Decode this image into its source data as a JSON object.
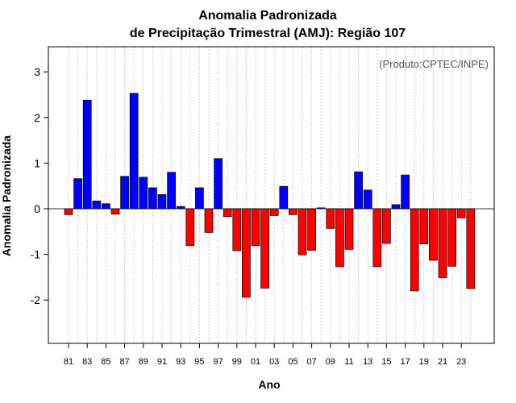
{
  "chart_data": {
    "type": "bar",
    "title": "Anomalia Padronizada",
    "subtitle": "de Precipitação Trimestral (AMJ): Região 107",
    "xlabel": "Ano",
    "ylabel": "Anomalia Padronizada",
    "annotation": "(Produto:CPTEC/INPE)",
    "ylim": [
      -2.95,
      3.55
    ],
    "yticks": [
      -2,
      -1,
      0,
      1,
      2,
      3
    ],
    "grid": "vertical dotted",
    "categories": [
      "81",
      "82",
      "83",
      "84",
      "85",
      "86",
      "87",
      "88",
      "89",
      "90",
      "91",
      "92",
      "93",
      "94",
      "95",
      "96",
      "97",
      "98",
      "99",
      "00",
      "01",
      "02",
      "03",
      "04",
      "05",
      "06",
      "07",
      "08",
      "09",
      "10",
      "11",
      "12",
      "13",
      "14",
      "15",
      "16",
      "17",
      "18",
      "19",
      "20",
      "21",
      "22",
      "23",
      "24"
    ],
    "tick_labels": [
      "81",
      "83",
      "85",
      "87",
      "89",
      "91",
      "93",
      "95",
      "97",
      "99",
      "01",
      "03",
      "05",
      "07",
      "09",
      "11",
      "13",
      "15",
      "17",
      "19",
      "21",
      "23"
    ],
    "values": [
      -0.13,
      0.66,
      2.38,
      0.17,
      0.11,
      -0.12,
      0.71,
      2.53,
      0.69,
      0.46,
      0.31,
      0.8,
      0.05,
      -0.81,
      0.46,
      -0.52,
      1.1,
      -0.17,
      -0.92,
      -1.94,
      -0.81,
      -1.74,
      -0.15,
      0.49,
      -0.13,
      -1.01,
      -0.91,
      0.02,
      -0.43,
      -1.27,
      -0.89,
      0.81,
      0.41,
      -1.27,
      -0.76,
      0.09,
      0.74,
      -1.8,
      -0.77,
      -1.13,
      -1.51,
      -1.26,
      -0.2,
      -1.75
    ],
    "positive_color": "#0000ff",
    "negative_color": "#ff0000"
  }
}
